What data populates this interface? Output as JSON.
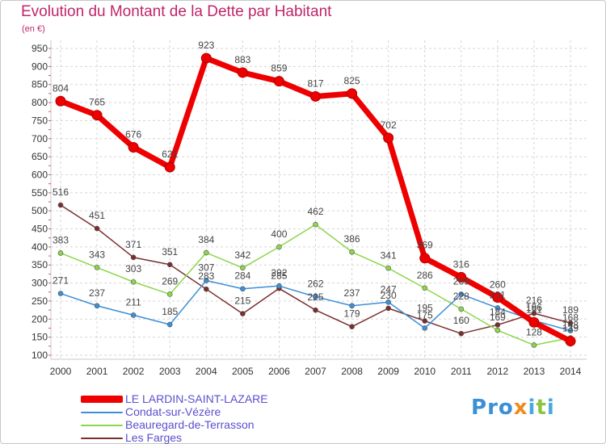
{
  "title": "Evolution du Montant de la Dette par Habitant",
  "subtitle": "(en €)",
  "logo": {
    "parts": [
      "P",
      "r",
      "o",
      "x",
      "i",
      "t",
      "i"
    ]
  },
  "chart_data": {
    "type": "line",
    "title": "Evolution du Montant de la Dette par Habitant",
    "ylabel": "(en €)",
    "x": [
      "2000",
      "2001",
      "2002",
      "2003",
      "2004",
      "2005",
      "2006",
      "2007",
      "2008",
      "2009",
      "2010",
      "2011",
      "2012",
      "2013",
      "2014"
    ],
    "ylim": [
      100,
      950
    ],
    "yticks": [
      100,
      150,
      200,
      250,
      300,
      350,
      400,
      450,
      500,
      550,
      600,
      650,
      700,
      750,
      800,
      850,
      900,
      950
    ],
    "grid": true,
    "legend": "bottom-left",
    "series": [
      {
        "name": "LE LARDIN-SAINT-LAZARE",
        "color": "#ee0000",
        "values": [
          804,
          765,
          676,
          621,
          923,
          883,
          859,
          817,
          825,
          702,
          369,
          316,
          260,
          191,
          139
        ]
      },
      {
        "name": "Condat-sur-Vézère",
        "color": "#3d8fd6",
        "values": [
          271,
          237,
          211,
          185,
          307,
          284,
          292,
          262,
          237,
          247,
          175,
          269,
          231,
          196,
          168
        ]
      },
      {
        "name": "Beauregard-de-Terrasson",
        "color": "#8cd64a",
        "values": [
          383,
          343,
          303,
          269,
          384,
          342,
          400,
          462,
          386,
          341,
          286,
          228,
          169,
          128,
          148
        ]
      },
      {
        "name": "Les Farges",
        "color": "#7a2e2e",
        "values": [
          516,
          451,
          371,
          351,
          283,
          215,
          285,
          225,
          179,
          230,
          195,
          160,
          184,
          216,
          189
        ]
      }
    ]
  }
}
